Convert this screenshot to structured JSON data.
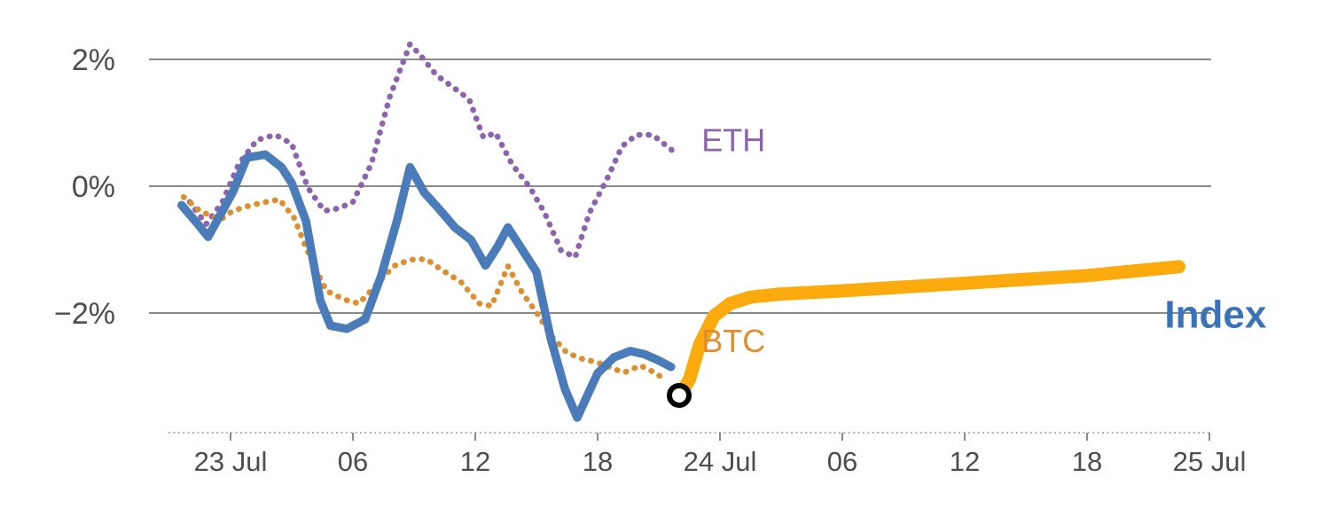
{
  "canvas": {
    "background": "#ffffff"
  },
  "chart_data": {
    "type": "line",
    "title": "",
    "xlabel": "",
    "ylabel": "",
    "x_unit": "hours since 23 Jul 00:00",
    "xlim": [
      -3,
      48.8
    ],
    "ylim": [
      -3.9,
      2.3
    ],
    "grid": "horizontal",
    "legend": "inline-labels",
    "axis": {
      "grid_color": "#8a8a8a",
      "axis_color": "#9a9a9a",
      "tick_color": "#8a8a8a",
      "tick_label_color": "#4d4d4d",
      "x_axis_style": "dashed"
    },
    "x_ticks": [
      {
        "value": 0,
        "label": "23 Jul"
      },
      {
        "value": 6,
        "label": "06"
      },
      {
        "value": 12,
        "label": "12"
      },
      {
        "value": 18,
        "label": "18"
      },
      {
        "value": 24,
        "label": "24 Jul"
      },
      {
        "value": 30,
        "label": "06"
      },
      {
        "value": 36,
        "label": "12"
      },
      {
        "value": 42,
        "label": "18"
      },
      {
        "value": 48,
        "label": "25 Jul"
      }
    ],
    "y_ticks": [
      {
        "value": 2,
        "label": "2%"
      },
      {
        "value": 0,
        "label": "0%"
      },
      {
        "value": -2,
        "label": "−2%"
      }
    ],
    "series": [
      {
        "id": "eth",
        "name": "ETH",
        "color": "#8d63ad",
        "style": "dotted",
        "width": 6.5,
        "label_at": {
          "x": 23.1,
          "y": 0.72
        },
        "label_size": 36,
        "label_weight": "normal",
        "points": [
          [
            -2.0,
            -0.25
          ],
          [
            -1.2,
            -0.6
          ],
          [
            -0.4,
            -0.25
          ],
          [
            0.4,
            0.35
          ],
          [
            1.3,
            0.73
          ],
          [
            2.2,
            0.81
          ],
          [
            3.0,
            0.67
          ],
          [
            3.8,
            -0.03
          ],
          [
            4.6,
            -0.39
          ],
          [
            5.3,
            -0.35
          ],
          [
            6.0,
            -0.25
          ],
          [
            6.9,
            0.35
          ],
          [
            7.8,
            1.4
          ],
          [
            8.8,
            2.24
          ],
          [
            9.3,
            2.07
          ],
          [
            10.1,
            1.75
          ],
          [
            11.0,
            1.54
          ],
          [
            11.7,
            1.37
          ],
          [
            12.4,
            0.77
          ],
          [
            13.0,
            0.84
          ],
          [
            13.8,
            0.35
          ],
          [
            14.7,
            -0.03
          ],
          [
            15.4,
            -0.42
          ],
          [
            16.2,
            -1.01
          ],
          [
            16.9,
            -1.12
          ],
          [
            17.6,
            -0.42
          ],
          [
            18.5,
            0.14
          ],
          [
            19.2,
            0.63
          ],
          [
            19.9,
            0.81
          ],
          [
            20.7,
            0.81
          ],
          [
            21.4,
            0.63
          ],
          [
            21.8,
            0.53
          ]
        ]
      },
      {
        "id": "btc",
        "name": "BTC",
        "color": "#df8e2e",
        "style": "dotted",
        "width": 6.5,
        "label_at": {
          "x": 23.1,
          "y": -2.45
        },
        "label_size": 36,
        "label_weight": "normal",
        "points": [
          [
            -2.3,
            -0.17
          ],
          [
            -1.5,
            -0.39
          ],
          [
            -0.5,
            -0.53
          ],
          [
            0.1,
            -0.39
          ],
          [
            0.9,
            -0.31
          ],
          [
            1.7,
            -0.25
          ],
          [
            2.4,
            -0.21
          ],
          [
            3.1,
            -0.49
          ],
          [
            3.9,
            -1.12
          ],
          [
            4.7,
            -1.65
          ],
          [
            5.6,
            -1.79
          ],
          [
            6.3,
            -1.85
          ],
          [
            7.2,
            -1.54
          ],
          [
            8.0,
            -1.26
          ],
          [
            8.8,
            -1.16
          ],
          [
            9.6,
            -1.15
          ],
          [
            10.4,
            -1.33
          ],
          [
            11.3,
            -1.51
          ],
          [
            12.2,
            -1.85
          ],
          [
            12.8,
            -1.89
          ],
          [
            13.6,
            -1.26
          ],
          [
            14.3,
            -1.68
          ],
          [
            15.0,
            -1.99
          ],
          [
            15.7,
            -2.35
          ],
          [
            16.5,
            -2.63
          ],
          [
            17.3,
            -2.73
          ],
          [
            17.9,
            -2.77
          ],
          [
            18.7,
            -2.87
          ],
          [
            19.3,
            -2.94
          ],
          [
            20.1,
            -2.83
          ],
          [
            20.8,
            -2.94
          ],
          [
            21.3,
            -3.05
          ]
        ]
      },
      {
        "id": "index",
        "name": "Index",
        "color": "#4a7cba",
        "style": "solid",
        "width": 9.5,
        "label_at": {
          "x": 45.8,
          "y": -2.06
        },
        "label_size": 44,
        "label_weight": "bold",
        "label_color": "#3a72b8",
        "points": [
          [
            -2.4,
            -0.3
          ],
          [
            -1.6,
            -0.6
          ],
          [
            -1.1,
            -0.8
          ],
          [
            -0.5,
            -0.45
          ],
          [
            0.1,
            -0.1
          ],
          [
            0.8,
            0.45
          ],
          [
            1.7,
            0.5
          ],
          [
            2.5,
            0.3
          ],
          [
            3.0,
            0.05
          ],
          [
            3.7,
            -0.55
          ],
          [
            4.4,
            -1.8
          ],
          [
            4.9,
            -2.2
          ],
          [
            5.7,
            -2.25
          ],
          [
            6.6,
            -2.1
          ],
          [
            7.4,
            -1.4
          ],
          [
            8.2,
            -0.5
          ],
          [
            8.8,
            0.3
          ],
          [
            9.5,
            -0.1
          ],
          [
            10.2,
            -0.35
          ],
          [
            11.0,
            -0.65
          ],
          [
            11.8,
            -0.85
          ],
          [
            12.5,
            -1.25
          ],
          [
            13.1,
            -0.95
          ],
          [
            13.6,
            -0.65
          ],
          [
            14.3,
            -1.0
          ],
          [
            15.0,
            -1.35
          ],
          [
            15.7,
            -2.4
          ],
          [
            16.4,
            -3.2
          ],
          [
            17.0,
            -3.65
          ],
          [
            17.5,
            -3.3
          ],
          [
            18.0,
            -2.95
          ],
          [
            18.8,
            -2.7
          ],
          [
            19.6,
            -2.6
          ],
          [
            20.3,
            -2.65
          ],
          [
            21.0,
            -2.75
          ],
          [
            21.6,
            -2.85
          ]
        ]
      },
      {
        "id": "index-forecast",
        "name": "",
        "color": "#fcab0e",
        "style": "solid",
        "width": 15,
        "points": [
          [
            22.0,
            -3.3
          ],
          [
            22.5,
            -3.05
          ],
          [
            23.0,
            -2.5
          ],
          [
            23.7,
            -2.05
          ],
          [
            24.5,
            -1.85
          ],
          [
            25.5,
            -1.75
          ],
          [
            27.0,
            -1.7
          ],
          [
            30.0,
            -1.65
          ],
          [
            34.0,
            -1.57
          ],
          [
            38.0,
            -1.49
          ],
          [
            42.0,
            -1.41
          ],
          [
            46.5,
            -1.27
          ]
        ]
      }
    ],
    "marker": {
      "x": 22.0,
      "y": -3.3,
      "shape": "open-circle",
      "fill": "#ffffff",
      "stroke": "#000000"
    }
  }
}
